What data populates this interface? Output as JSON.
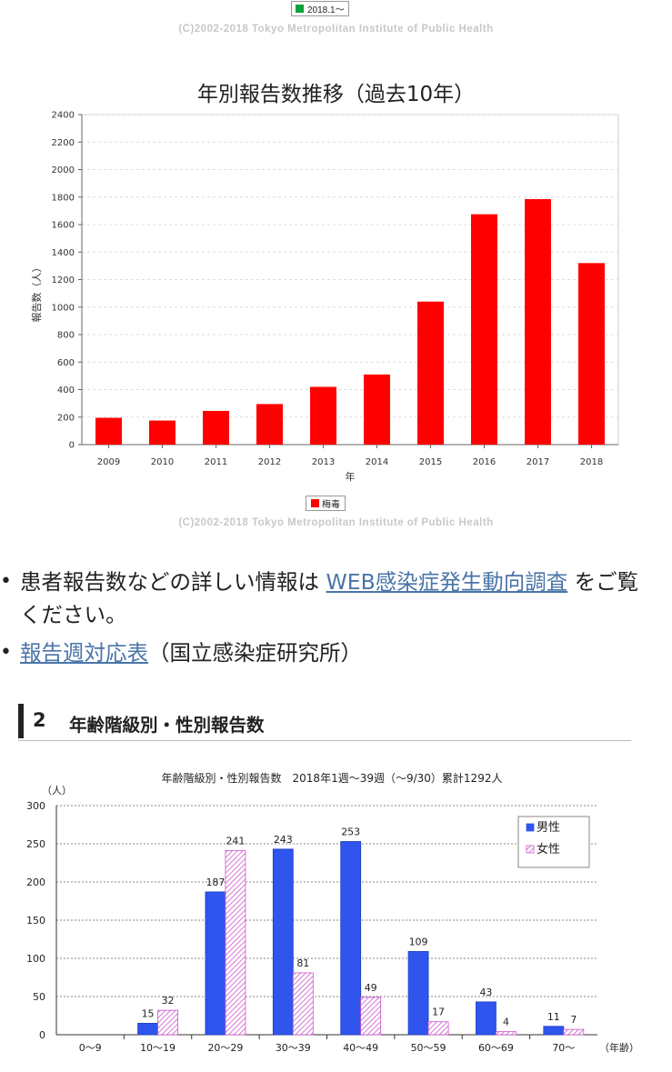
{
  "top_legend": {
    "label": "2018.1～",
    "color": "#0aa23a"
  },
  "copyright": "(C)2002-2018 Tokyo Metropolitan Institute of Public Health",
  "chart_data": [
    {
      "type": "bar",
      "title": "年別報告数推移（過去10年）",
      "xlabel": "年",
      "ylabel": "報告数（人）",
      "ylim": [
        0,
        2400
      ],
      "yticks": [
        "0",
        "200",
        "400",
        "600",
        "800",
        "1000",
        "1200",
        "1400",
        "1600",
        "1800",
        "2000",
        "2200",
        "2400"
      ],
      "categories": [
        "2009",
        "2010",
        "2011",
        "2012",
        "2013",
        "2014",
        "2015",
        "2016",
        "2017",
        "2018"
      ],
      "series": [
        {
          "name": "梅毒",
          "color": "#ff0000",
          "values": [
            195,
            175,
            245,
            295,
            420,
            510,
            1040,
            1675,
            1785,
            1320
          ]
        }
      ],
      "grid": true,
      "legend": "bottom"
    },
    {
      "type": "bar",
      "title": "年齢階級別・性別報告数　2018年1週～39週（～9/30）累計1292人",
      "yunit": "（人）",
      "xunit": "（年齢）",
      "ylim": [
        0,
        300
      ],
      "yticks": [
        "0",
        "50",
        "100",
        "150",
        "200",
        "250",
        "300"
      ],
      "categories": [
        "0～9",
        "10～19",
        "20～29",
        "30～39",
        "40～49",
        "50～59",
        "60～69",
        "70～"
      ],
      "series": [
        {
          "name": "男性",
          "color": "#2f55ee",
          "values": [
            0,
            15,
            187,
            243,
            253,
            109,
            43,
            11
          ]
        },
        {
          "name": "女性",
          "color": "#cc55cc",
          "values": [
            0,
            32,
            241,
            81,
            49,
            17,
            4,
            7
          ]
        }
      ],
      "grid": true,
      "legend": "top-right"
    }
  ],
  "info": {
    "item1_prefix": "患者報告数などの詳しい情報は",
    "item1_link": "WEB感染症発生動向調査",
    "item1_suffix": "をご覧ください。",
    "item2_link": "報告週対応表",
    "item2_suffix": "（国立感染症研究所）"
  },
  "section": {
    "number": "2",
    "title": "年齢階級別・性別報告数"
  }
}
